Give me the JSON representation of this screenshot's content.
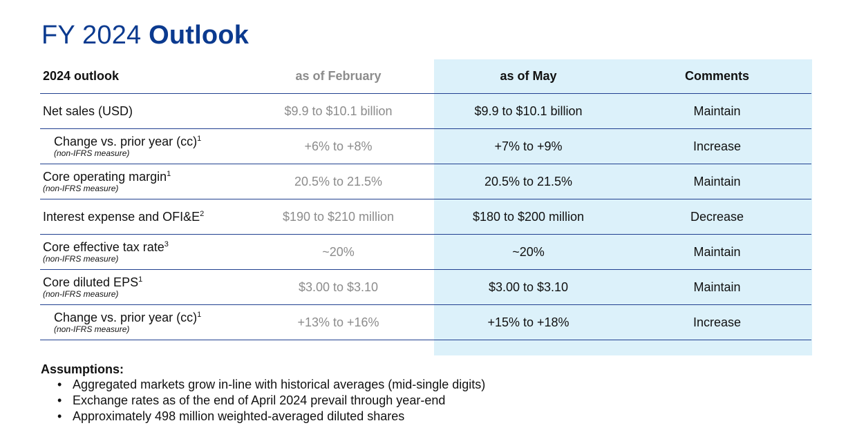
{
  "title": {
    "prefix": "FY 2024",
    "emphasis": "Outlook"
  },
  "table": {
    "headers": {
      "label": "2024 outlook",
      "february": "as of February",
      "may": "as of May",
      "comments": "Comments"
    },
    "rows": [
      {
        "label": "Net sales (USD)",
        "sup": "",
        "note": "",
        "february": "$9.9 to $10.1 billion",
        "may": "$9.9 to $10.1 billion",
        "comment": "Maintain"
      },
      {
        "label": "Change vs. prior year (cc)",
        "sup": "1",
        "note": "(non-IFRS measure)",
        "february": "+6% to +8%",
        "may": "+7% to +9%",
        "comment": "Increase"
      },
      {
        "label": "Core operating margin",
        "sup": "1",
        "note": "(non-IFRS measure)",
        "february": "20.5% to 21.5%",
        "may": "20.5% to 21.5%",
        "comment": "Maintain"
      },
      {
        "label": "Interest expense and OFI&E",
        "sup": "2",
        "note": "",
        "february": "$190 to $210 million",
        "may": "$180 to $200 million",
        "comment": "Decrease"
      },
      {
        "label": "Core effective tax rate",
        "sup": "3",
        "note": "(non-IFRS measure)",
        "february": "~20%",
        "may": "~20%",
        "comment": "Maintain"
      },
      {
        "label": "Core diluted EPS",
        "sup": "1",
        "note": "(non-IFRS measure)",
        "february": "$3.00 to $3.10",
        "may": "$3.00 to $3.10",
        "comment": "Maintain"
      },
      {
        "label": "Change vs. prior year (cc)",
        "sup": "1",
        "note": "(non-IFRS measure)",
        "february": "+13% to +16%",
        "may": "+15% to +18%",
        "comment": "Increase"
      }
    ]
  },
  "assumptions": {
    "heading": "Assumptions:",
    "bullet": "•",
    "items": [
      "Aggregated markets grow in-line with historical averages (mid-single digits)",
      "Exchange rates as of the end of April 2024 prevail through year-end",
      "Approximately 498 million weighted-averaged diluted shares"
    ]
  },
  "colors": {
    "title": "#0b3a8f",
    "rule": "#1f3f8f",
    "may_band": "#dcf1fa",
    "muted_text": "#8c8c8c"
  }
}
